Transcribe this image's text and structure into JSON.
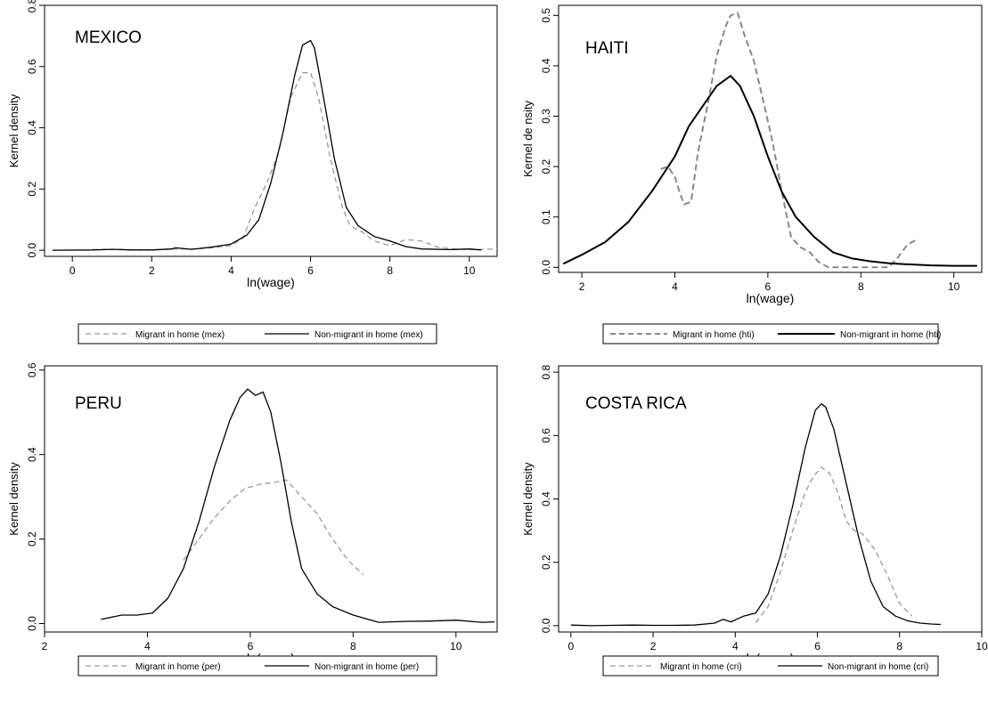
{
  "chart_data": [
    {
      "type": "line",
      "title": "MEXICO",
      "xlabel": "ln(wage)",
      "ylabel": "Kernel density",
      "xlim": [
        -0.7,
        10.7
      ],
      "ylim": [
        -0.02,
        0.8
      ],
      "xticks": [
        0,
        2,
        4,
        6,
        8,
        10
      ],
      "yticks": [
        0.0,
        0.2,
        0.4,
        0.6,
        0.8
      ],
      "ytick_labels": [
        "0.0",
        "0.2",
        "0.4",
        "0.6",
        "0.8"
      ],
      "legend_position": "bottom",
      "series": [
        {
          "name": "Migrant in home (mex)",
          "style": "dashed",
          "color": "#999999",
          "x": [
            0.5,
            1.0,
            2.0,
            2.5,
            3.0,
            3.5,
            4.0,
            4.3,
            4.6,
            4.9,
            5.2,
            5.5,
            5.8,
            6.0,
            6.2,
            6.5,
            6.8,
            7.0,
            7.3,
            7.6,
            8.0,
            8.4,
            8.8,
            9.2,
            9.6,
            10.0,
            10.4,
            10.7
          ],
          "y": [
            0.002,
            0.003,
            0.001,
            0.004,
            0.004,
            0.008,
            0.015,
            0.04,
            0.14,
            0.22,
            0.32,
            0.5,
            0.58,
            0.58,
            0.5,
            0.3,
            0.14,
            0.08,
            0.06,
            0.03,
            0.015,
            0.035,
            0.03,
            0.01,
            0.004,
            0.002,
            0.003,
            0.004
          ]
        },
        {
          "name": "Non-migrant in home (mex)",
          "style": "solid",
          "color": "#000000",
          "x": [
            -0.5,
            0.5,
            1.0,
            1.5,
            2.0,
            2.5,
            2.6,
            3.0,
            3.5,
            4.0,
            4.4,
            4.7,
            5.0,
            5.3,
            5.6,
            5.8,
            6.0,
            6.1,
            6.3,
            6.6,
            6.9,
            7.2,
            7.6,
            8.0,
            8.4,
            8.8,
            9.5,
            10.0,
            10.3
          ],
          "y": [
            0.0,
            0.001,
            0.003,
            0.001,
            0.001,
            0.004,
            0.008,
            0.003,
            0.01,
            0.02,
            0.05,
            0.1,
            0.22,
            0.38,
            0.57,
            0.67,
            0.685,
            0.66,
            0.52,
            0.3,
            0.14,
            0.08,
            0.045,
            0.03,
            0.012,
            0.004,
            0.002,
            0.004,
            0.001
          ]
        }
      ]
    },
    {
      "type": "line",
      "title": "HAITI",
      "xlabel": "ln(wage)",
      "ylabel": "Kernel de nsity",
      "xlim": [
        1.5,
        10.6
      ],
      "ylim": [
        -0.01,
        0.52
      ],
      "xticks": [
        2,
        4,
        6,
        8,
        10
      ],
      "yticks": [
        0.0,
        0.1,
        0.2,
        0.3,
        0.4,
        0.5
      ],
      "ytick_labels": [
        "0.0",
        "0.1",
        "0.2",
        "0.3",
        "0.4",
        "0.5"
      ],
      "legend_position": "bottom",
      "series": [
        {
          "name": "Migrant in home (hti)",
          "style": "dashed",
          "color": "#888888",
          "x": [
            3.7,
            3.85,
            4.0,
            4.1,
            4.2,
            4.35,
            4.5,
            4.7,
            4.9,
            5.1,
            5.2,
            5.35,
            5.5,
            5.7,
            5.9,
            6.1,
            6.3,
            6.5,
            6.7,
            6.9,
            7.1,
            7.3,
            7.6,
            8.0,
            8.3,
            8.6,
            8.8,
            9.0,
            9.2
          ],
          "y": [
            0.195,
            0.2,
            0.18,
            0.15,
            0.125,
            0.13,
            0.23,
            0.32,
            0.42,
            0.48,
            0.5,
            0.505,
            0.46,
            0.41,
            0.33,
            0.25,
            0.15,
            0.06,
            0.04,
            0.03,
            0.01,
            0.0,
            0.0,
            0.0,
            0.0,
            0.0,
            0.02,
            0.045,
            0.055
          ]
        },
        {
          "name": "Non-migrant in home (hti)",
          "style": "solid",
          "color": "#000000",
          "x": [
            1.6,
            2.0,
            2.5,
            3.0,
            3.5,
            4.0,
            4.3,
            4.6,
            4.9,
            5.2,
            5.4,
            5.7,
            6.0,
            6.3,
            6.6,
            7.0,
            7.4,
            7.8,
            8.2,
            8.6,
            9.0,
            9.5,
            10.0,
            10.5
          ],
          "y": [
            0.007,
            0.025,
            0.05,
            0.09,
            0.15,
            0.22,
            0.28,
            0.32,
            0.36,
            0.38,
            0.36,
            0.3,
            0.22,
            0.15,
            0.1,
            0.06,
            0.03,
            0.018,
            0.012,
            0.008,
            0.006,
            0.004,
            0.003,
            0.003
          ]
        }
      ]
    },
    {
      "type": "line",
      "title": "PERU",
      "xlabel": "ln(wage)",
      "ylabel": "Kernel density",
      "xlim": [
        2.0,
        10.8
      ],
      "ylim": [
        -0.02,
        0.61
      ],
      "xticks": [
        2,
        4,
        6,
        8,
        10
      ],
      "yticks": [
        0.0,
        0.2,
        0.4,
        0.6
      ],
      "ytick_labels": [
        "0.0",
        "0.2",
        "0.4",
        "0.6"
      ],
      "legend_position": "bottom",
      "series": [
        {
          "name": "Migrant in home (per)",
          "style": "dashed",
          "color": "#999999",
          "x": [
            4.7,
            5.0,
            5.3,
            5.6,
            5.9,
            6.2,
            6.5,
            6.7,
            7.0,
            7.3,
            7.6,
            7.9,
            8.2
          ],
          "y": [
            0.15,
            0.2,
            0.25,
            0.29,
            0.32,
            0.33,
            0.335,
            0.34,
            0.3,
            0.26,
            0.2,
            0.15,
            0.115
          ]
        },
        {
          "name": "Non-migrant in home (per)",
          "style": "solid",
          "color": "#000000",
          "x": [
            3.1,
            3.5,
            3.8,
            4.1,
            4.4,
            4.7,
            5.0,
            5.3,
            5.6,
            5.8,
            5.95,
            6.1,
            6.25,
            6.4,
            6.6,
            6.8,
            7.0,
            7.3,
            7.6,
            8.0,
            8.5,
            9.0,
            9.5,
            10.0,
            10.5,
            10.75
          ],
          "y": [
            0.01,
            0.02,
            0.02,
            0.025,
            0.06,
            0.13,
            0.24,
            0.37,
            0.48,
            0.535,
            0.555,
            0.54,
            0.548,
            0.5,
            0.38,
            0.24,
            0.13,
            0.07,
            0.04,
            0.02,
            0.003,
            0.005,
            0.006,
            0.008,
            0.003,
            0.004
          ]
        }
      ]
    },
    {
      "type": "line",
      "title": "COSTA RICA",
      "xlabel": "ln(wage)",
      "ylabel": "Kernel density",
      "xlim": [
        -0.3,
        10.0
      ],
      "ylim": [
        -0.02,
        0.82
      ],
      "xticks": [
        0,
        2,
        4,
        6,
        8,
        10
      ],
      "yticks": [
        0.0,
        0.2,
        0.4,
        0.6,
        0.8
      ],
      "ytick_labels": [
        "0.0",
        "0.2",
        "0.4",
        "0.6",
        "0.8"
      ],
      "legend_position": "bottom",
      "series": [
        {
          "name": "Migrant in home (cri)",
          "style": "dashed",
          "color": "#999999",
          "x": [
            4.5,
            4.8,
            5.1,
            5.4,
            5.7,
            5.9,
            6.1,
            6.3,
            6.5,
            6.7,
            6.9,
            7.1,
            7.4,
            7.7,
            8.0,
            8.3
          ],
          "y": [
            0.01,
            0.06,
            0.17,
            0.3,
            0.42,
            0.47,
            0.5,
            0.48,
            0.42,
            0.33,
            0.3,
            0.29,
            0.24,
            0.16,
            0.07,
            0.03
          ]
        },
        {
          "name": "Non-migrant in home (cri)",
          "style": "solid",
          "color": "#000000",
          "x": [
            0.0,
            0.5,
            1.0,
            1.5,
            2.0,
            2.5,
            3.0,
            3.5,
            3.7,
            3.9,
            4.2,
            4.5,
            4.8,
            5.1,
            5.4,
            5.7,
            5.95,
            6.1,
            6.2,
            6.4,
            6.7,
            7.0,
            7.3,
            7.6,
            7.9,
            8.2,
            8.5,
            8.8,
            9.0
          ],
          "y": [
            0.002,
            0.0,
            0.001,
            0.002,
            0.001,
            0.001,
            0.002,
            0.008,
            0.02,
            0.012,
            0.03,
            0.04,
            0.1,
            0.22,
            0.38,
            0.56,
            0.68,
            0.7,
            0.69,
            0.62,
            0.45,
            0.28,
            0.14,
            0.06,
            0.03,
            0.015,
            0.008,
            0.005,
            0.004
          ]
        }
      ]
    }
  ]
}
